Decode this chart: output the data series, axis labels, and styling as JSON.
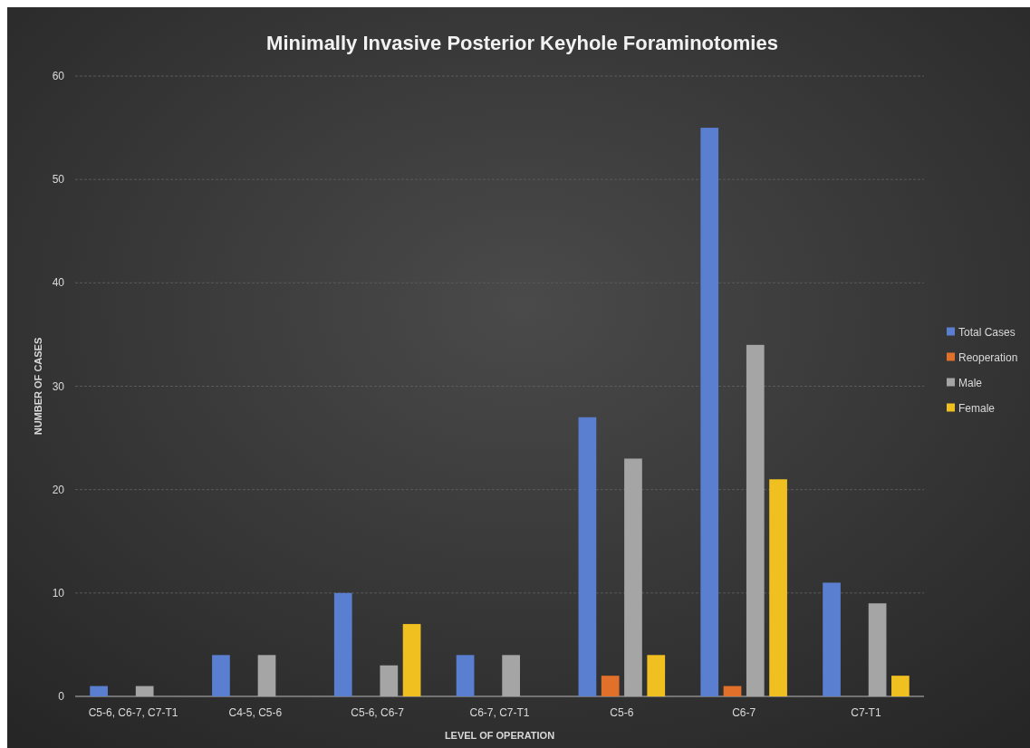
{
  "chart_data": {
    "type": "bar",
    "title": "Minimally Invasive Posterior Keyhole Foraminotomies",
    "xlabel": "LEVEL OF OPERATION",
    "ylabel": "NUMBER OF CASES",
    "categories": [
      "C5-6, C6-7, C7-T1",
      "C4-5, C5-6",
      "C5-6, C6-7",
      "C6-7, C7-T1",
      "C5-6",
      "C6-7",
      "C7-T1"
    ],
    "series": [
      {
        "name": "Total Cases",
        "color": "#5a7fd0",
        "values": [
          1,
          4,
          10,
          4,
          27,
          55,
          11
        ]
      },
      {
        "name": "Reoperation",
        "color": "#e0702a",
        "values": [
          0,
          0,
          0,
          0,
          2,
          1,
          0
        ]
      },
      {
        "name": "Male",
        "color": "#a5a5a5",
        "values": [
          1,
          4,
          3,
          4,
          23,
          34,
          9
        ]
      },
      {
        "name": "Female",
        "color": "#f0c020",
        "values": [
          0,
          0,
          7,
          0,
          4,
          21,
          2
        ]
      }
    ],
    "ylim": [
      0,
      60
    ],
    "yticks": [
      0,
      10,
      20,
      30,
      40,
      50,
      60
    ],
    "grid": "y",
    "legend": "right"
  }
}
